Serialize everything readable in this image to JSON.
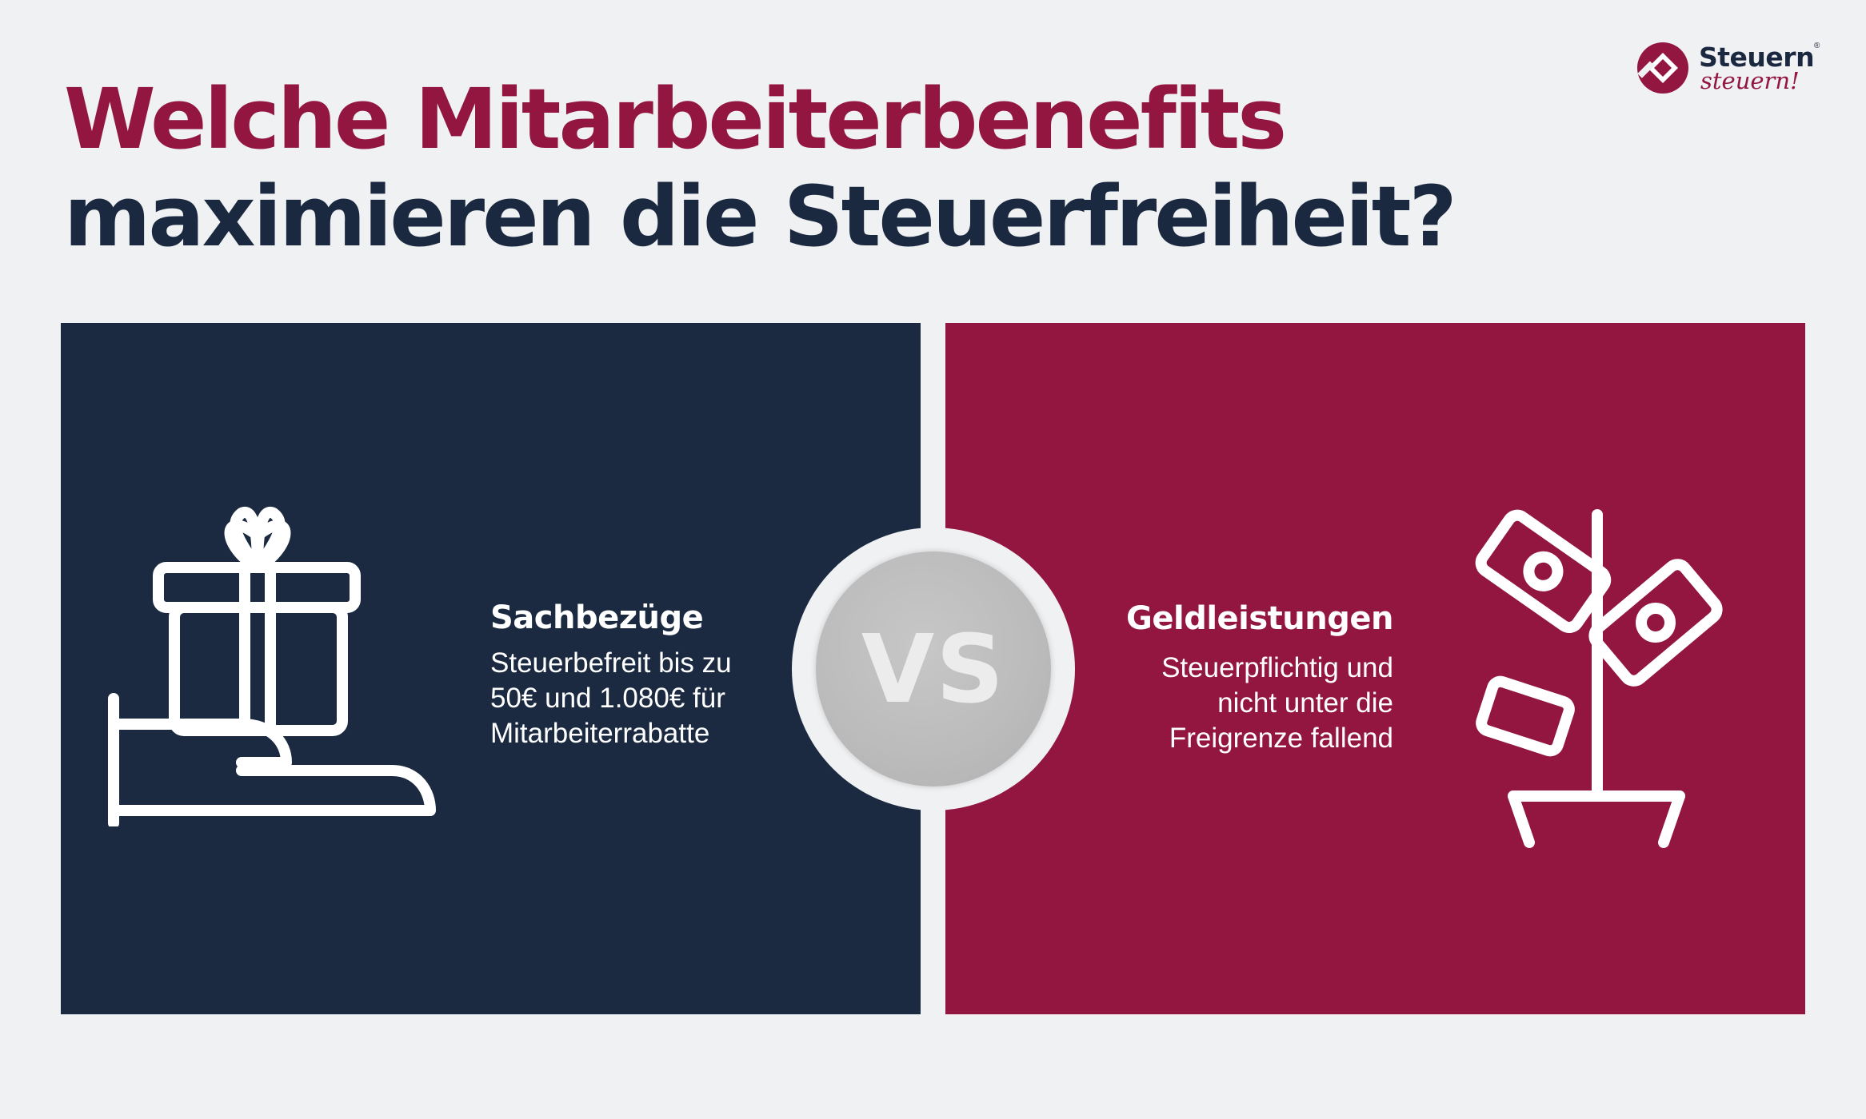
{
  "title": {
    "line1": "Welche Mitarbeiterbenefits",
    "line2": "maximieren die Steuerfreiheit?"
  },
  "logo": {
    "word1": "Steuern",
    "word2": "steuern!",
    "registered": "®"
  },
  "left": {
    "heading": "Sachbezüge",
    "description": "Steuerbefreit bis zu\n50€ und 1.080€ für\nMitarbeiterrabatte",
    "icon": "gift-hand-icon"
  },
  "right": {
    "heading": "Geldleistungen",
    "description": "Steuerpflichtig und\nnicht unter die\nFreigrenze fallend",
    "icon": "money-tree-icon"
  },
  "vs": {
    "label": "VS"
  },
  "colors": {
    "navy": "#1b2a41",
    "burgundy": "#92163f",
    "background": "#f0f1f3",
    "vs_grey": "#bcbcbc"
  }
}
